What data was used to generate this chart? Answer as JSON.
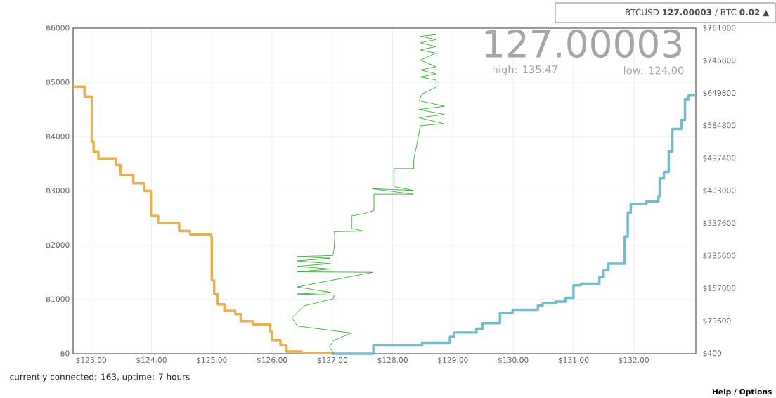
{
  "chart_data": {
    "type": "step",
    "xlim": [
      122.7,
      133.03
    ],
    "xticks": [
      {
        "value": 123,
        "label": "$123.00"
      },
      {
        "value": 124,
        "label": "$124.00"
      },
      {
        "value": 125,
        "label": "$125.00"
      },
      {
        "value": 126,
        "label": "$126.00"
      },
      {
        "value": 127,
        "label": "$127.00"
      },
      {
        "value": 128,
        "label": "$128.00"
      },
      {
        "value": 129,
        "label": "$129.00"
      },
      {
        "value": 130,
        "label": "$130.00"
      },
      {
        "value": 131,
        "label": "$131.00"
      },
      {
        "value": 132,
        "label": "$132.00"
      }
    ],
    "ylim": [
      0,
      6000
    ],
    "yticks": [
      {
        "value": 0,
        "label": "฿0"
      },
      {
        "value": 1000,
        "label": "฿1000"
      },
      {
        "value": 2000,
        "label": "฿2000"
      },
      {
        "value": 3000,
        "label": "฿3000"
      },
      {
        "value": 4000,
        "label": "฿4000"
      },
      {
        "value": 5000,
        "label": "฿5000"
      },
      {
        "value": 6000,
        "label": "฿6000"
      }
    ],
    "grid": true,
    "series": [
      {
        "color": "#e8b04e",
        "x": [
          122.7,
          122.89,
          123.01,
          123.04,
          123.12,
          123.41,
          123.49,
          123.7,
          123.88,
          123.99,
          124.11,
          124.46,
          124.64,
          124.99,
          125.0,
          125.04,
          125.1,
          125.21,
          125.39,
          125.48,
          125.68,
          125.97,
          126.0,
          126.14,
          126.24,
          126.49,
          127.0
        ],
        "values": [
          4920,
          4740,
          3910,
          3720,
          3600,
          3480,
          3290,
          3140,
          3000,
          2540,
          2410,
          2260,
          2200,
          2160,
          1350,
          1100,
          910,
          790,
          730,
          600,
          540,
          410,
          250,
          160,
          40,
          10,
          0
        ]
      },
      {
        "color": "#72bccc",
        "x": [
          127.0,
          127.68,
          128.49,
          128.95,
          129.02,
          129.39,
          129.49,
          129.78,
          129.99,
          130.41,
          130.49,
          130.7,
          130.87,
          131.0,
          131.12,
          131.43,
          131.5,
          131.58,
          131.85,
          131.9,
          131.95,
          132.21,
          132.41,
          132.43,
          132.5,
          132.58,
          132.64,
          132.79,
          132.85,
          132.91,
          133.03
        ],
        "values": [
          0,
          160,
          200,
          310,
          390,
          460,
          560,
          750,
          810,
          890,
          930,
          960,
          1030,
          1260,
          1290,
          1410,
          1540,
          1660,
          2160,
          2600,
          2760,
          2810,
          2900,
          3230,
          3350,
          3730,
          4140,
          4310,
          4690,
          4760,
          4760
        ]
      },
      {
        "type": "line",
        "color": "#1aa31a",
        "x": [
          127.02,
          126.95,
          127.03,
          127.32,
          126.42,
          126.33,
          126.53,
          127.01,
          127.03,
          126.42,
          126.97,
          126.42,
          127.67,
          126.42,
          126.97,
          126.42,
          126.97,
          126.42,
          126.97,
          126.42,
          127.01,
          127.03,
          127.04,
          127.03,
          127.52,
          127.32,
          127.32,
          127.52,
          127.69,
          127.69,
          128.34,
          127.67,
          128.34,
          128.02,
          128.02,
          128.35,
          128.35,
          128.39,
          128.46,
          128.84,
          128.44,
          128.86,
          128.44,
          128.86,
          128.44,
          128.49,
          128.72,
          128.72,
          128.46,
          128.72,
          128.46,
          128.72,
          128.46,
          128.72,
          128.46,
          128.72,
          128.46,
          128.72,
          128.46,
          128.72
        ],
        "values": [
          0,
          130,
          250,
          380,
          510,
          660,
          880,
          1010,
          1080,
          1100,
          1130,
          1230,
          1500,
          1510,
          1560,
          1610,
          1660,
          1710,
          1760,
          1790,
          1810,
          1950,
          2160,
          2250,
          2260,
          2310,
          2540,
          2580,
          2640,
          2940,
          2940,
          3040,
          3010,
          3080,
          3410,
          3410,
          3580,
          3790,
          4200,
          4240,
          4350,
          4410,
          4500,
          4560,
          4660,
          4790,
          4910,
          5040,
          5100,
          5160,
          5230,
          5290,
          5410,
          5540,
          5600,
          5660,
          5730,
          5790,
          5850,
          5880
        ]
      }
    ],
    "annotations": [
      "127.00003",
      "high: 135.47",
      "low: 124.00",
      "BTCUSD **127.00003** / BTC **0.02** ▲",
      "currently connected: 163, uptime: 7 hours",
      "Help / Options",
      "$400",
      "$79600",
      "$157000",
      "$235600",
      "$337600",
      "$403000",
      "$497400",
      "$584800",
      "$649800",
      "$746800",
      "$761000"
    ]
  }
}
